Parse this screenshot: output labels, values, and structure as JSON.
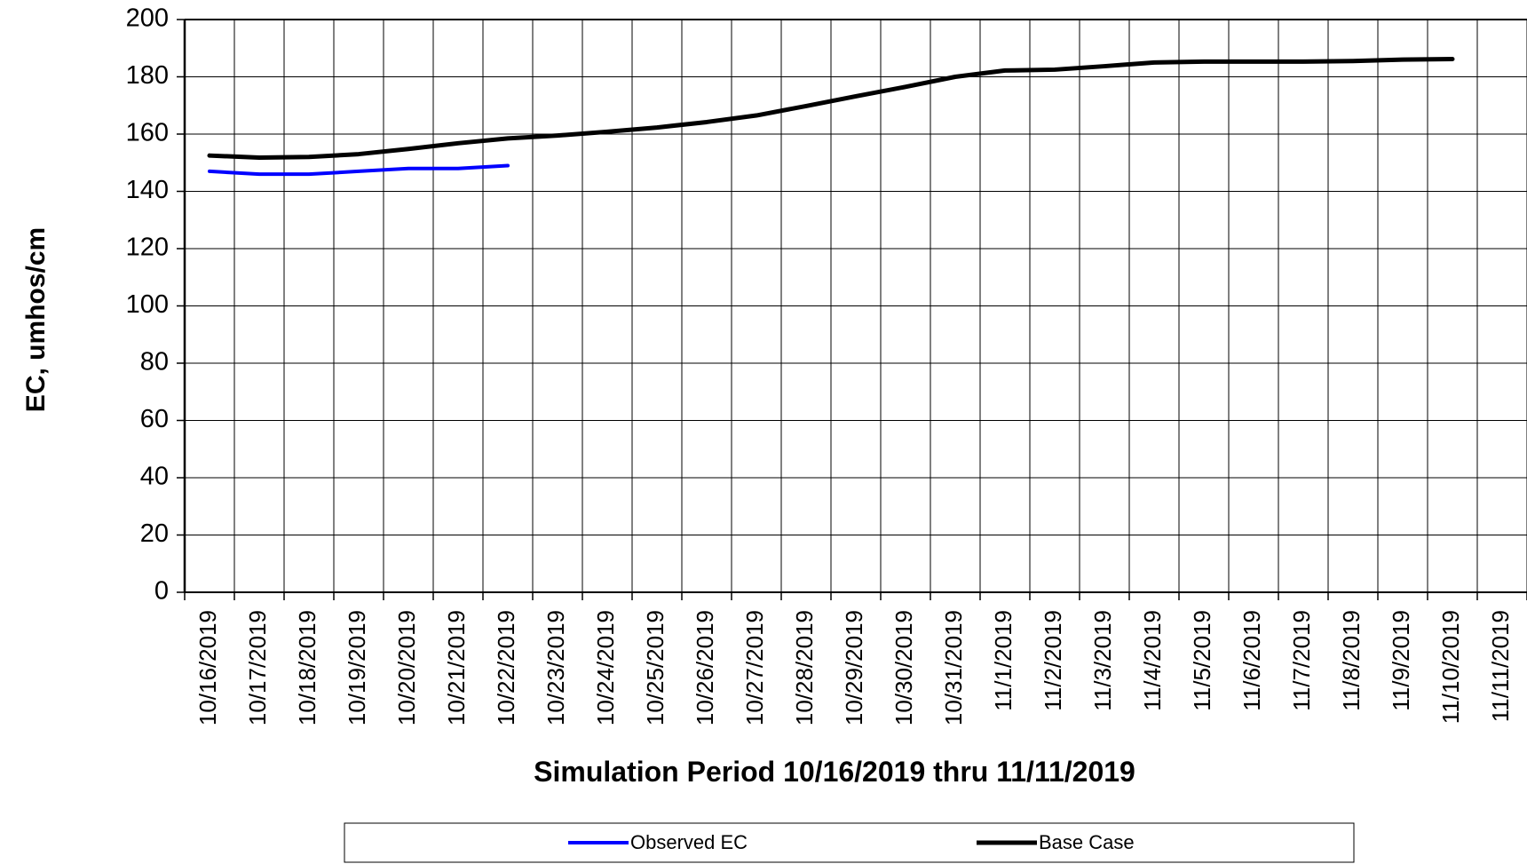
{
  "chart_data": {
    "type": "line",
    "x_label": "Simulation Period 10/16/2019 thru 11/11/2019",
    "y_label": "EC, umhos/cm",
    "categories": [
      "10/16/2019",
      "10/17/2019",
      "10/18/2019",
      "10/19/2019",
      "10/20/2019",
      "10/21/2019",
      "10/22/2019",
      "10/23/2019",
      "10/24/2019",
      "10/25/2019",
      "10/26/2019",
      "10/27/2019",
      "10/28/2019",
      "10/29/2019",
      "10/30/2019",
      "10/31/2019",
      "11/1/2019",
      "11/2/2019",
      "11/3/2019",
      "11/4/2019",
      "11/5/2019",
      "11/6/2019",
      "11/7/2019",
      "11/8/2019",
      "11/9/2019",
      "11/10/2019",
      "11/11/2019"
    ],
    "series": [
      {
        "name": "Observed EC",
        "color": "#0000ff",
        "values": [
          147,
          146,
          146,
          147,
          148,
          148,
          149,
          null,
          null,
          null,
          null,
          null,
          null,
          null,
          null,
          null,
          null,
          null,
          null,
          null,
          null,
          null,
          null,
          null,
          null,
          null,
          null
        ]
      },
      {
        "name": "Base Case",
        "color": "#000000",
        "values": [
          152.5,
          151.8,
          152,
          153,
          154.8,
          156.8,
          158.5,
          159.5,
          160.8,
          162.3,
          164.2,
          166.5,
          169.8,
          173.2,
          176.5,
          180,
          182.2,
          182.5,
          183.7,
          185,
          185.3,
          185.3,
          185.3,
          185.5,
          186,
          186.2,
          null
        ]
      }
    ],
    "ylim": [
      0,
      200
    ],
    "yticks": [
      0,
      20,
      40,
      60,
      80,
      100,
      120,
      140,
      160,
      180,
      200
    ],
    "grid": true
  }
}
